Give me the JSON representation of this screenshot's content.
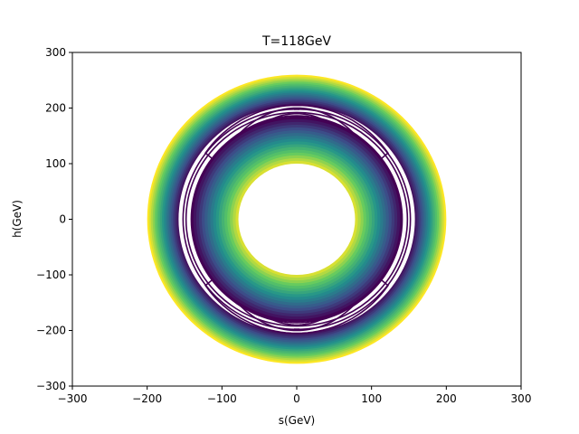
{
  "chart_data": {
    "type": "contour",
    "title": "T=118GeV",
    "xlabel": "s(GeV)",
    "ylabel": "h(GeV)",
    "xlim": [
      -300,
      300
    ],
    "ylim": [
      -300,
      300
    ],
    "x_ticks": [
      -300,
      -200,
      -100,
      0,
      100,
      200,
      300
    ],
    "y_ticks": [
      -300,
      -200,
      -100,
      0,
      100,
      200,
      300
    ],
    "x_tick_labels": [
      "−300",
      "−200",
      "−100",
      "0",
      "100",
      "200",
      "300"
    ],
    "y_tick_labels": [
      "−300",
      "−200",
      "−100",
      "0",
      "100",
      "200",
      "300"
    ],
    "grid": false,
    "colormap": "viridis",
    "colormap_stops": [
      "#fde725",
      "#5ec962",
      "#21918c",
      "#3b528b",
      "#440154"
    ],
    "outer_bands": {
      "outer_radius_s": 200,
      "outer_radius_h": 260,
      "inner_radius_s": 158,
      "inner_radius_h": 205,
      "levels": 18
    },
    "inner_bands": {
      "outer_radius_s": 142,
      "outer_radius_h": 185,
      "inner_radius_s": 78,
      "inner_radius_h": 100,
      "levels": 18
    },
    "minima": [
      {
        "s": 0,
        "h": 198
      },
      {
        "s": 0,
        "h": -198
      }
    ],
    "contour_color": "#440154"
  }
}
